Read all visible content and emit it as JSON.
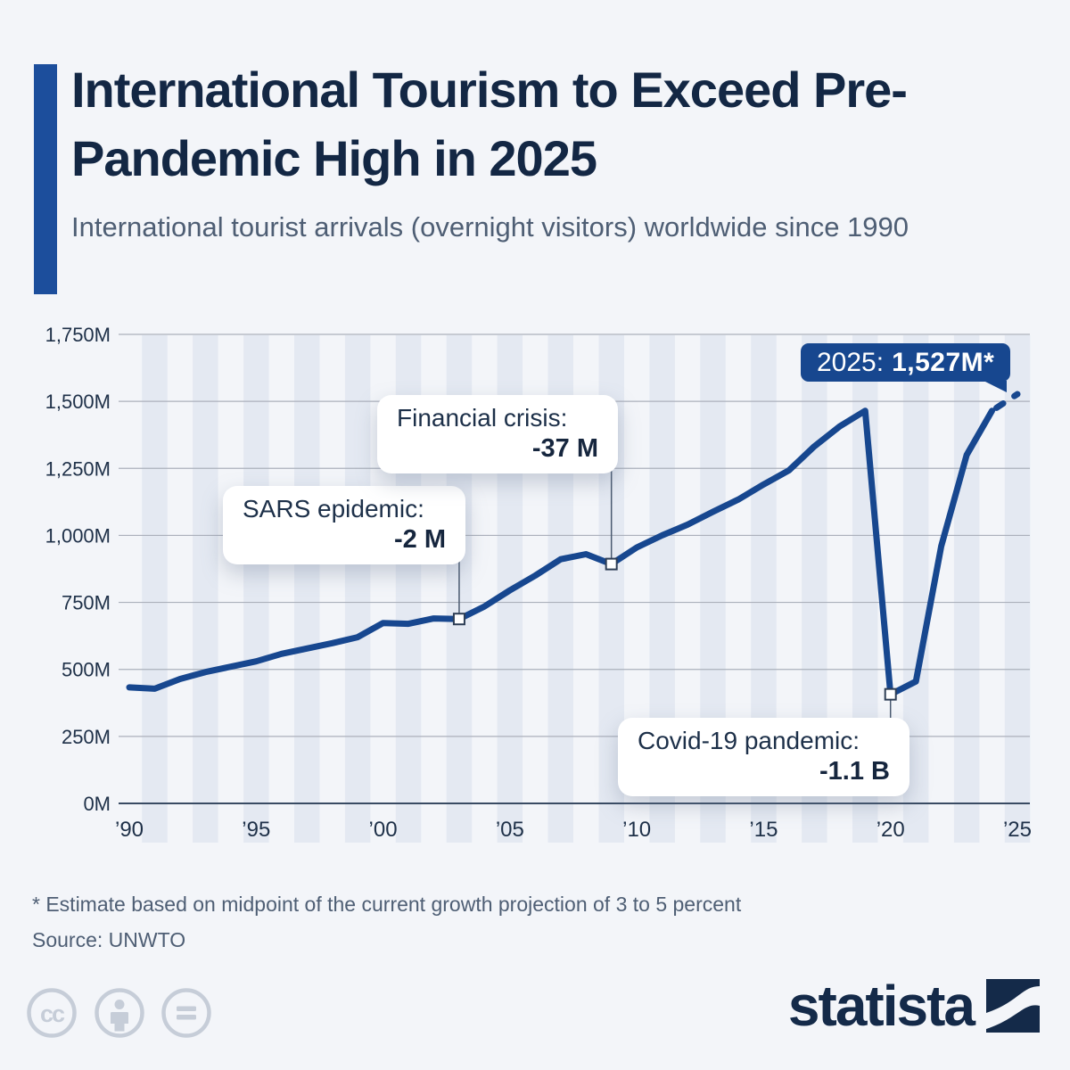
{
  "header": {
    "title": "International Tourism to Exceed Pre-Pandemic High in 2025",
    "subtitle": "International tourist arrivals (overnight visitors) worldwide since 1990"
  },
  "chart_data": {
    "type": "line",
    "series_name": "International tourist arrivals (millions)",
    "x": [
      1990,
      1991,
      1992,
      1993,
      1994,
      1995,
      1996,
      1997,
      1998,
      1999,
      2000,
      2001,
      2002,
      2003,
      2004,
      2005,
      2006,
      2007,
      2008,
      2009,
      2010,
      2011,
      2012,
      2013,
      2014,
      2015,
      2016,
      2017,
      2018,
      2019,
      2020,
      2021,
      2022,
      2023,
      2024,
      2025
    ],
    "values": [
      433,
      428,
      464,
      490,
      510,
      530,
      558,
      578,
      598,
      620,
      673,
      670,
      690,
      688,
      735,
      795,
      850,
      911,
      930,
      893,
      955,
      1000,
      1040,
      1088,
      1134,
      1190,
      1243,
      1332,
      1407,
      1465,
      407,
      455,
      960,
      1300,
      1465,
      1527
    ],
    "ylim": [
      0,
      1750
    ],
    "dashed_from_year": 2024,
    "grid": true,
    "legend": "none",
    "line_color": "#17478f",
    "yticks": [
      {
        "v": 1750,
        "label": "1,750M"
      },
      {
        "v": 1500,
        "label": "1,500M"
      },
      {
        "v": 1250,
        "label": "1,250M"
      },
      {
        "v": 1000,
        "label": "1,000M"
      },
      {
        "v": 750,
        "label": "750M"
      },
      {
        "v": 500,
        "label": "500M"
      },
      {
        "v": 250,
        "label": "250M"
      },
      {
        "v": 0,
        "label": "0M"
      }
    ],
    "xticks": [
      {
        "v": 1990,
        "label": "’90"
      },
      {
        "v": 1995,
        "label": "’95"
      },
      {
        "v": 2000,
        "label": "’00"
      },
      {
        "v": 2005,
        "label": "’05"
      },
      {
        "v": 2010,
        "label": "’10"
      },
      {
        "v": 2015,
        "label": "’15"
      },
      {
        "v": 2020,
        "label": "’20"
      },
      {
        "v": 2025,
        "label": "’25"
      }
    ],
    "annotations": [
      {
        "id": "sars",
        "label": "SARS epidemic:",
        "value_label": "-2 M",
        "anchor_year": 2003,
        "anchor_value": 688
      },
      {
        "id": "financial-crisis",
        "label": "Financial crisis:",
        "value_label": "-37 M",
        "anchor_year": 2009,
        "anchor_value": 893
      },
      {
        "id": "covid",
        "label": "Covid-19 pandemic:",
        "value_label": "-1.1 B",
        "anchor_year": 2020,
        "anchor_value": 407
      },
      {
        "id": "projection-2025",
        "label": "2025:",
        "value_label": "1,527M*",
        "anchor_year": 2025,
        "anchor_value": 1527
      }
    ]
  },
  "footer": {
    "footnote": "* Estimate based on midpoint of the current growth projection of 3 to 5 percent",
    "source": "Source: UNWTO"
  },
  "branding": {
    "logo_text": "statista",
    "license_icons": [
      "cc-icon",
      "person-icon",
      "equals-icon"
    ]
  },
  "colors": {
    "background": "#f3f5f9",
    "accent_bar": "#1c4e9c",
    "title": "#132744",
    "secondary_text": "#4e5e74",
    "line": "#17478f",
    "badge": "#17478f",
    "stripe": "#e4e9f2",
    "gridline": "#abb0bb",
    "axis_line": "#394b63",
    "axis_text": "#1e3048",
    "connector": "#4a5a70",
    "marker_border": "#2e3e55",
    "logo": "#142a49",
    "license_icon": "#c6cdd8"
  }
}
